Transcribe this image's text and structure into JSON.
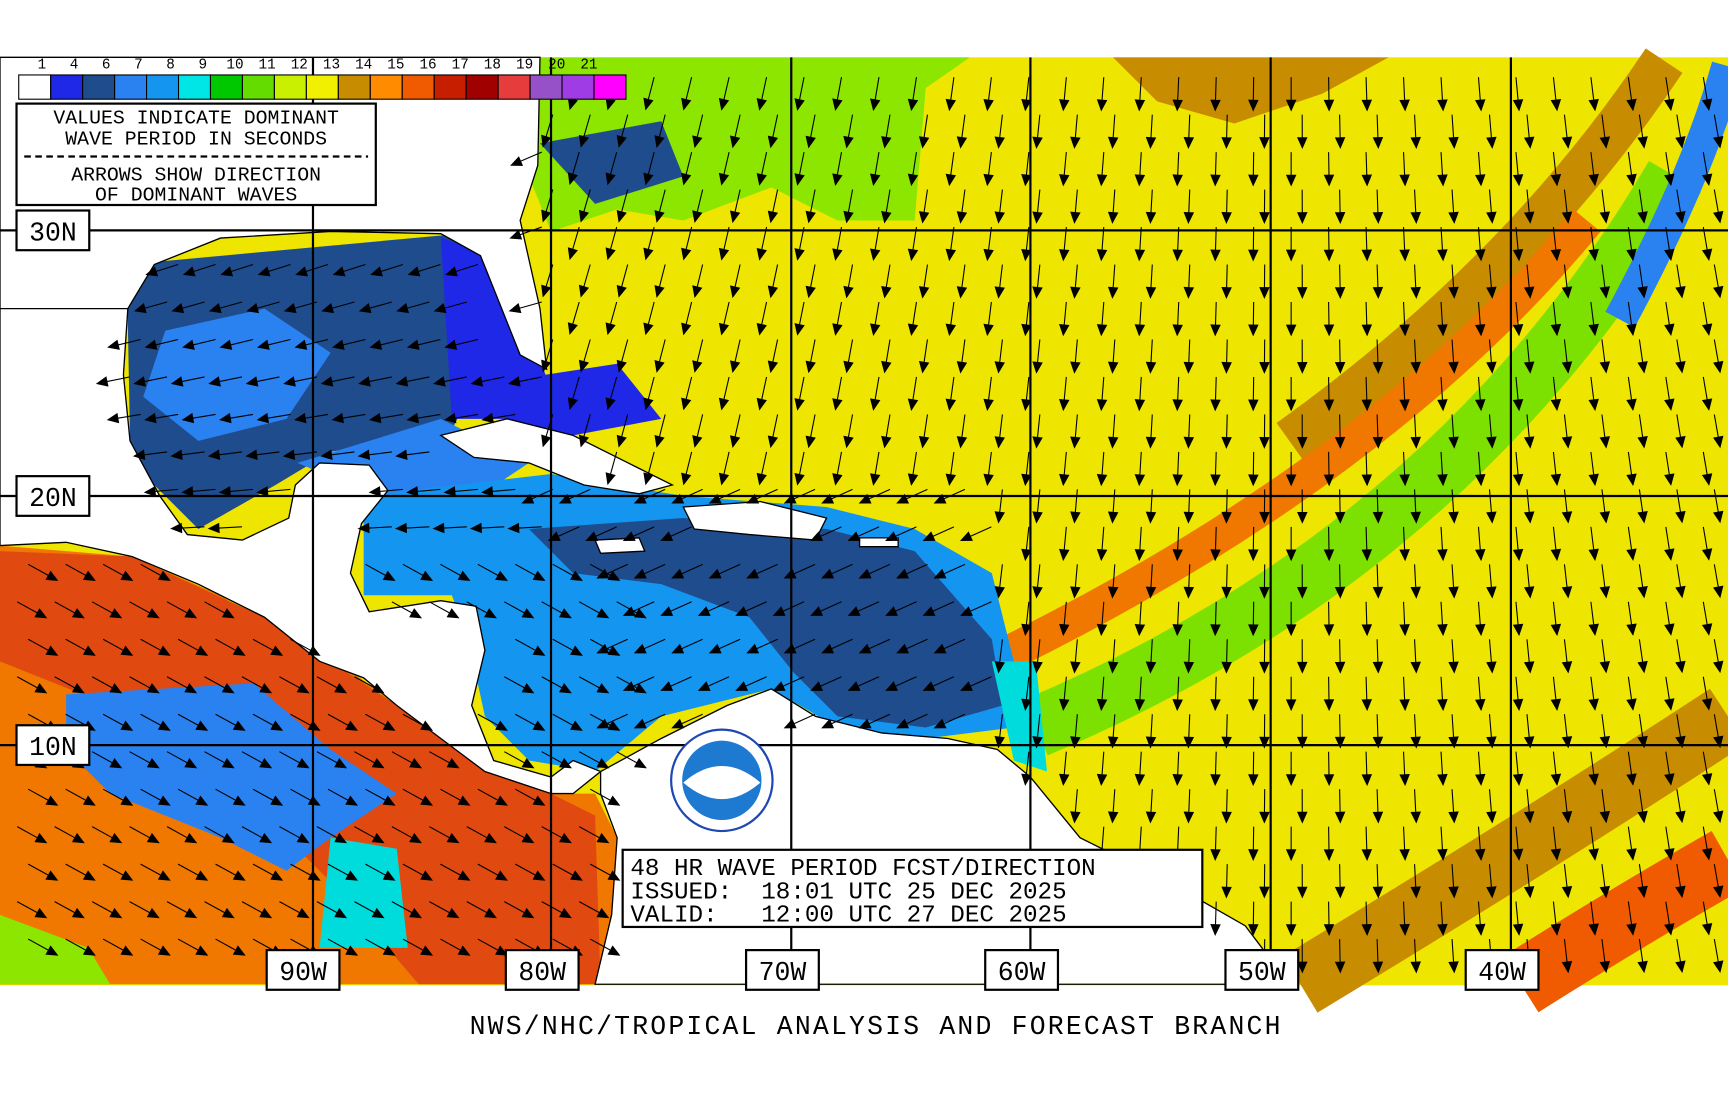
{
  "legend": {
    "scale_labels": [
      1,
      4,
      6,
      7,
      8,
      9,
      10,
      11,
      12,
      13,
      14,
      15,
      16,
      17,
      18,
      19,
      20,
      21
    ],
    "notes": [
      "VALUES INDICATE DOMINANT",
      "WAVE PERIOD IN SECONDS",
      "ARROWS SHOW DIRECTION",
      "OF DOMINANT WAVES"
    ]
  },
  "latitude_labels": [
    "30N",
    "20N",
    "10N"
  ],
  "longitude_labels": [
    "90W",
    "80W",
    "70W",
    "60W",
    "50W",
    "40W"
  ],
  "title_box": {
    "lines": [
      "48 HR WAVE PERIOD FCST/DIRECTION",
      "ISSUED:  18:01 UTC 25 DEC 2025",
      "VALID:   12:00 UTC 27 DEC 2025"
    ]
  },
  "footer": "NWS/NHC/TROPICAL ANALYSIS AND FORECAST BRANCH"
}
